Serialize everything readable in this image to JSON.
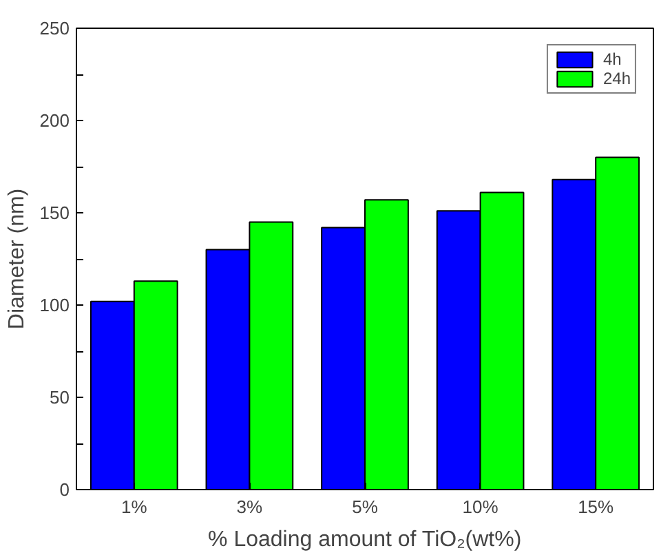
{
  "chart_data": {
    "type": "bar",
    "xlabel": "% Loading amount of TiO₂(wt%)",
    "ylabel": "Diameter (nm)",
    "categories": [
      "1%",
      "3%",
      "5%",
      "10%",
      "15%"
    ],
    "series": [
      {
        "name": "4h",
        "color": "#0000ff",
        "values": [
          102,
          130,
          142,
          151,
          168
        ]
      },
      {
        "name": "24h",
        "color": "#00ff00",
        "values": [
          113,
          145,
          157,
          161,
          180
        ]
      }
    ],
    "ylim": [
      0,
      250
    ],
    "yticks": [
      0,
      {
        "value": 25,
        "label": null
      },
      50,
      {
        "value": 75,
        "label": null
      },
      100,
      {
        "value": 125,
        "label": null
      },
      150,
      {
        "value": 175,
        "label": null
      },
      200,
      {
        "value": 225,
        "label": null
      },
      250
    ],
    "grid": false,
    "legend": "top right"
  }
}
